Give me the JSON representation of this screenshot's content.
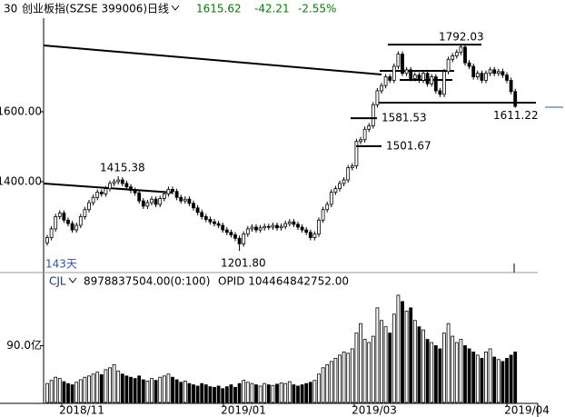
{
  "chart_data": {
    "type": "candlestick",
    "code": "30",
    "title": "创业板指(SZSE 399006)",
    "period": "日线",
    "last": 1615.62,
    "change": -42.21,
    "change_pct": "-2.55%",
    "days_label": "143天",
    "volume_name": "CJL",
    "volume_value": "8978837504.00(0:100)",
    "volume_extra": "OPID 104464842752.00",
    "x_labels": [
      "2018/11",
      "2019/01",
      "2019/03",
      "2019/04"
    ],
    "ylim": [
      1140,
      1873
    ],
    "yticks": [
      {
        "value": 1400,
        "label": "1400.00"
      },
      {
        "value": 1600,
        "label": "1600.00"
      }
    ],
    "y2lim": [
      0,
      180
    ],
    "y2ticks": [
      {
        "value": 90,
        "label": "90.0亿"
      }
    ],
    "annotations": [
      {
        "value": 1792.03,
        "label": "1792.03"
      },
      {
        "value": 1581.53,
        "label": "1581.53"
      },
      {
        "value": 1501.67,
        "label": "1501.67"
      },
      {
        "value": 1611.22,
        "label": "1611.22"
      },
      {
        "value": 1415.38,
        "label": "1415.38"
      },
      {
        "value": 1201.8,
        "label": "1201.80"
      }
    ],
    "color": "#000000",
    "open": [
      1225,
      1240,
      1265,
      1300,
      1310,
      1290,
      1280,
      1262,
      1275,
      1300,
      1320,
      1340,
      1355,
      1370,
      1365,
      1380,
      1395,
      1400,
      1405,
      1395,
      1385,
      1375,
      1368,
      1345,
      1330,
      1340,
      1350,
      1335,
      1352,
      1365,
      1378,
      1372,
      1355,
      1345,
      1350,
      1338,
      1325,
      1312,
      1300,
      1292,
      1285,
      1280,
      1275,
      1262,
      1255,
      1248,
      1238,
      1222,
      1250,
      1265,
      1270,
      1262,
      1268,
      1272,
      1270,
      1275,
      1268,
      1272,
      1280,
      1285,
      1278,
      1270,
      1262,
      1255,
      1240,
      1250,
      1290,
      1320,
      1335,
      1370,
      1380,
      1395,
      1405,
      1440,
      1445,
      1515,
      1520,
      1550,
      1560,
      1620,
      1660,
      1675,
      1700,
      1690,
      1730,
      1765,
      1710,
      1720,
      1695,
      1705,
      1690,
      1710,
      1680,
      1700,
      1660,
      1650,
      1715,
      1750,
      1760,
      1770,
      1785,
      1740,
      1730,
      1700,
      1710,
      1690,
      1710,
      1720,
      1710,
      1715,
      1705,
      1690,
      1658
    ],
    "high": [
      1248,
      1273,
      1308,
      1318,
      1318,
      1298,
      1288,
      1283,
      1308,
      1328,
      1348,
      1363,
      1378,
      1378,
      1388,
      1403,
      1408,
      1415.38,
      1413,
      1403,
      1393,
      1383,
      1376,
      1353,
      1348,
      1358,
      1358,
      1360,
      1373,
      1386,
      1386,
      1380,
      1363,
      1358,
      1358,
      1346,
      1333,
      1320,
      1308,
      1300,
      1293,
      1288,
      1283,
      1270,
      1263,
      1256,
      1246,
      1258,
      1273,
      1278,
      1278,
      1276,
      1280,
      1280,
      1283,
      1283,
      1280,
      1288,
      1293,
      1293,
      1286,
      1278,
      1270,
      1263,
      1258,
      1298,
      1328,
      1343,
      1378,
      1388,
      1403,
      1413,
      1448,
      1453,
      1523,
      1528,
      1558,
      1568,
      1628,
      1668,
      1683,
      1708,
      1708,
      1738,
      1773,
      1773,
      1728,
      1728,
      1713,
      1713,
      1718,
      1718,
      1708,
      1708,
      1668,
      1723,
      1758,
      1768,
      1778,
      1792.03,
      1790,
      1748,
      1738,
      1718,
      1718,
      1718,
      1728,
      1728,
      1723,
      1723,
      1713,
      1698,
      1666
    ],
    "low": [
      1217,
      1232,
      1257,
      1292,
      1282,
      1272,
      1254,
      1254,
      1267,
      1292,
      1312,
      1332,
      1347,
      1357,
      1357,
      1372,
      1387,
      1392,
      1387,
      1377,
      1367,
      1360,
      1337,
      1322,
      1322,
      1332,
      1327,
      1327,
      1344,
      1357,
      1364,
      1347,
      1337,
      1337,
      1330,
      1317,
      1304,
      1292,
      1284,
      1277,
      1272,
      1267,
      1254,
      1247,
      1240,
      1230,
      1201.8,
      1214,
      1242,
      1257,
      1254,
      1254,
      1260,
      1262,
      1262,
      1260,
      1260,
      1264,
      1272,
      1270,
      1262,
      1254,
      1247,
      1232,
      1232,
      1242,
      1282,
      1312,
      1327,
      1362,
      1372,
      1387,
      1397,
      1432,
      1437,
      1507,
      1512,
      1542,
      1552,
      1612,
      1652,
      1667,
      1682,
      1682,
      1722,
      1702,
      1702,
      1687,
      1687,
      1682,
      1682,
      1672,
      1672,
      1652,
      1642,
      1642,
      1707,
      1742,
      1752,
      1762,
      1732,
      1722,
      1692,
      1692,
      1682,
      1682,
      1702,
      1702,
      1702,
      1697,
      1682,
      1650,
      1611.22
    ],
    "close": [
      1240,
      1265,
      1300,
      1310,
      1290,
      1280,
      1262,
      1275,
      1300,
      1320,
      1340,
      1355,
      1370,
      1365,
      1380,
      1395,
      1400,
      1405,
      1395,
      1385,
      1375,
      1368,
      1345,
      1330,
      1340,
      1350,
      1335,
      1352,
      1365,
      1378,
      1372,
      1355,
      1345,
      1350,
      1338,
      1325,
      1312,
      1300,
      1292,
      1285,
      1280,
      1275,
      1262,
      1255,
      1248,
      1238,
      1222,
      1250,
      1265,
      1270,
      1262,
      1268,
      1272,
      1270,
      1275,
      1268,
      1272,
      1280,
      1285,
      1278,
      1270,
      1262,
      1255,
      1240,
      1250,
      1290,
      1320,
      1335,
      1370,
      1380,
      1395,
      1405,
      1440,
      1445,
      1515,
      1520,
      1550,
      1560,
      1620,
      1660,
      1675,
      1700,
      1690,
      1730,
      1765,
      1710,
      1720,
      1695,
      1705,
      1690,
      1710,
      1680,
      1700,
      1660,
      1650,
      1715,
      1750,
      1760,
      1770,
      1785,
      1740,
      1730,
      1700,
      1710,
      1690,
      1710,
      1720,
      1710,
      1715,
      1705,
      1690,
      1658,
      1615.62
    ],
    "volume": [
      30,
      35,
      40,
      38,
      33,
      30,
      28,
      32,
      36,
      40,
      42,
      45,
      48,
      44,
      52,
      55,
      60,
      50,
      45,
      42,
      40,
      38,
      42,
      36,
      34,
      38,
      35,
      40,
      42,
      45,
      40,
      36,
      32,
      34,
      30,
      28,
      26,
      30,
      28,
      25,
      24,
      26,
      22,
      25,
      28,
      24,
      30,
      35,
      32,
      30,
      28,
      26,
      30,
      28,
      27,
      29,
      31,
      30,
      33,
      28,
      26,
      28,
      30,
      32,
      35,
      45,
      55,
      60,
      65,
      70,
      75,
      80,
      78,
      85,
      110,
      125,
      100,
      95,
      105,
      150,
      130,
      120,
      110,
      140,
      170,
      160,
      145,
      150,
      130,
      120,
      115,
      100,
      95,
      90,
      85,
      110,
      125,
      105,
      95,
      100,
      90,
      85,
      80,
      75,
      70,
      80,
      85,
      72,
      68,
      65,
      70,
      75,
      80
    ]
  }
}
